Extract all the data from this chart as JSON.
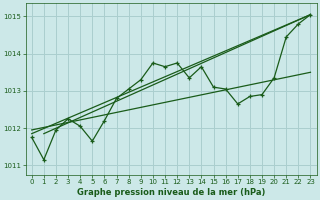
{
  "title": "Graphe pression niveau de la mer (hPa)",
  "xlim": [
    -0.5,
    23.5
  ],
  "ylim": [
    1010.75,
    1015.35
  ],
  "yticks": [
    1011,
    1012,
    1013,
    1014,
    1015
  ],
  "xticks": [
    0,
    1,
    2,
    3,
    4,
    5,
    6,
    7,
    8,
    9,
    10,
    11,
    12,
    13,
    14,
    15,
    16,
    17,
    18,
    19,
    20,
    21,
    22,
    23
  ],
  "background_color": "#cce8e8",
  "grid_color": "#aacece",
  "line_color": "#1a5c1a",
  "main_x": [
    0,
    1,
    2,
    3,
    4,
    5,
    6,
    7,
    8,
    9,
    10,
    11,
    12,
    13,
    14,
    15,
    16,
    17,
    18,
    19,
    20,
    21,
    22,
    23
  ],
  "main_y": [
    1011.75,
    1011.15,
    1011.95,
    1012.25,
    1012.05,
    1011.65,
    1012.2,
    1012.8,
    1013.05,
    1013.3,
    1013.75,
    1013.65,
    1013.75,
    1013.35,
    1013.65,
    1013.1,
    1013.05,
    1012.65,
    1012.85,
    1012.9,
    1013.35,
    1014.45,
    1014.8,
    1015.05
  ],
  "trend1_x": [
    0,
    23
  ],
  "trend1_y": [
    1011.85,
    1015.05
  ],
  "trend2_x": [
    1,
    23
  ],
  "trend2_y": [
    1011.85,
    1015.05
  ],
  "trend3_x": [
    0,
    23
  ],
  "trend3_y": [
    1011.95,
    1013.5
  ]
}
